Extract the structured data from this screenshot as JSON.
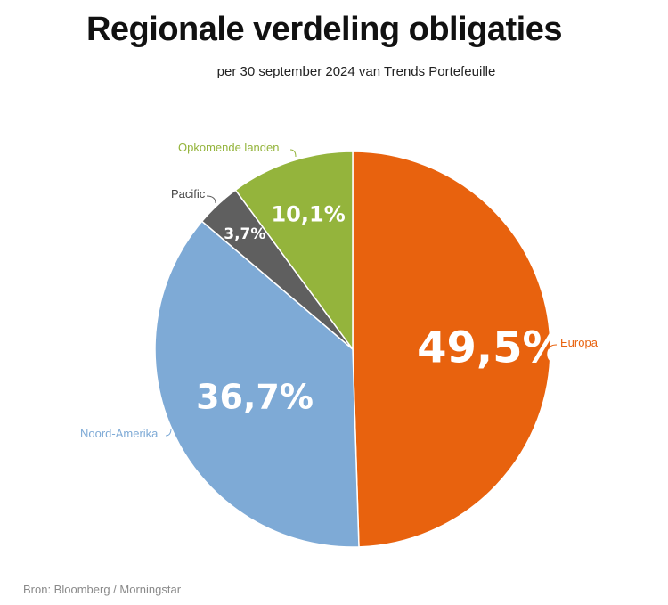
{
  "chart_data": {
    "type": "pie",
    "title": "Regionale verdeling obligaties",
    "subtitle": "per 30 september 2024 van Trends Portefeuille",
    "source": "Bron: Bloomberg / Morningstar",
    "slices": [
      {
        "name": "Europa",
        "value": 49.5,
        "label": "49,5%",
        "color": "#e8620e"
      },
      {
        "name": "Noord-Amerika",
        "value": 36.7,
        "label": "36,7%",
        "color": "#7eaad6"
      },
      {
        "name": "Pacific",
        "value": 3.7,
        "label": "3,7%",
        "color": "#5f5f5f"
      },
      {
        "name": "Opkomende landen",
        "value": 10.1,
        "label": "10,1%",
        "color": "#94b43c"
      }
    ]
  }
}
